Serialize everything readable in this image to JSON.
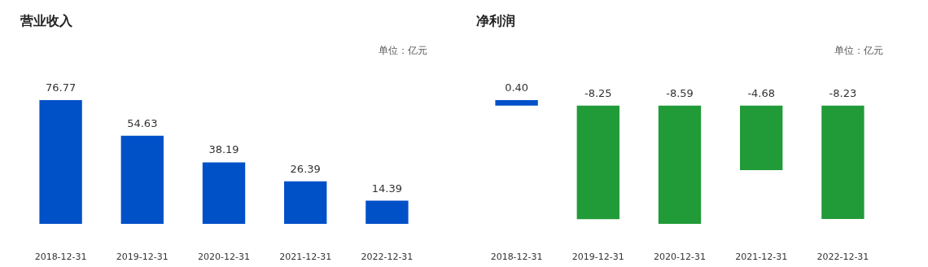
{
  "chart_data": [
    {
      "type": "bar",
      "title": "营业收入",
      "annotations": [
        "单位：亿元"
      ],
      "categories": [
        "2018-12-31",
        "2019-12-31",
        "2020-12-31",
        "2021-12-31",
        "2022-12-31"
      ],
      "values": [
        76.77,
        54.63,
        38.19,
        26.39,
        14.39
      ],
      "color": "#0050c8",
      "value_labels": [
        "76.77",
        "54.63",
        "38.19",
        "26.39",
        "14.39"
      ]
    },
    {
      "type": "bar",
      "title": "净利润",
      "annotations": [
        "单位：亿元"
      ],
      "categories": [
        "2018-12-31",
        "2019-12-31",
        "2020-12-31",
        "2021-12-31",
        "2022-12-31"
      ],
      "values": [
        0.4,
        -8.25,
        -8.59,
        -4.68,
        -8.23
      ],
      "colors": [
        "#0050c8",
        "#219a38",
        "#219a38",
        "#219a38",
        "#219a38"
      ],
      "value_labels": [
        "0.40",
        "-8.25",
        "-8.59",
        "-4.68",
        "-8.23"
      ]
    }
  ]
}
